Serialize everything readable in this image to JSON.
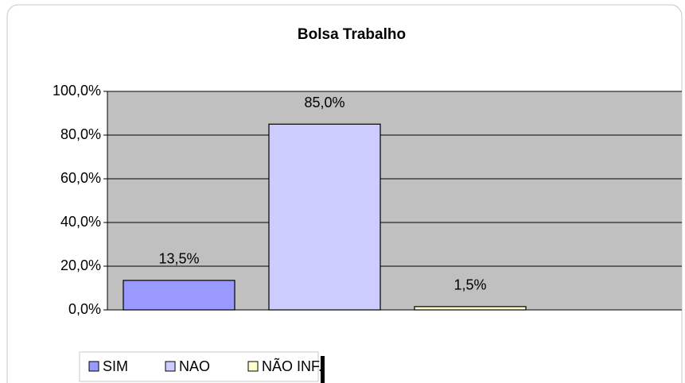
{
  "chart_data": {
    "type": "bar",
    "title": "Bolsa Trabalho",
    "categories": [
      null
    ],
    "series": [
      {
        "name": "SIM",
        "color": "#9999ff",
        "values": [
          13.5
        ],
        "value_labels": [
          "13,5%"
        ]
      },
      {
        "name": "NAO",
        "color": "#ccccff",
        "values": [
          85
        ],
        "value_labels": [
          "85,0%"
        ]
      },
      {
        "name": "NÃO INF.",
        "color": "#ffffcc",
        "values": [
          1.5
        ],
        "value_labels": [
          "1,5%"
        ]
      }
    ],
    "ylim": [
      0,
      100
    ],
    "yticks": [
      {
        "value": 0,
        "label": "0,0%"
      },
      {
        "value": 20,
        "label": "20,0%"
      },
      {
        "value": 40,
        "label": "40,0%"
      },
      {
        "value": 60,
        "label": "60,0%"
      },
      {
        "value": 80,
        "label": "80,0%"
      },
      {
        "value": 100,
        "label": "100,0%"
      }
    ],
    "grid": true,
    "legend": "bottom"
  }
}
